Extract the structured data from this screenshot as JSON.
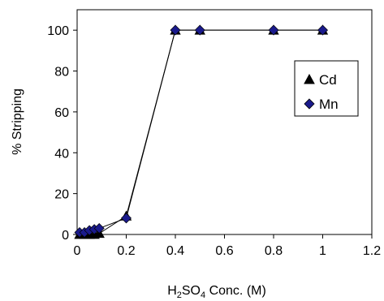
{
  "chart_data": {
    "type": "scatter",
    "xlabel": {
      "prefix": "H",
      "sub1": "2",
      "mid": "SO",
      "sub2": "4",
      "suffix": " Conc. (M)"
    },
    "ylabel": "% Stripping",
    "xlim": [
      0,
      1.2
    ],
    "ylim": [
      0,
      110
    ],
    "xticks": [
      0,
      0.2,
      0.4,
      0.6,
      0.8,
      1,
      1.2
    ],
    "xtick_labels": [
      "0",
      "0.2",
      "0.4",
      "0.6",
      "0.8",
      "1",
      "1.2"
    ],
    "yticks": [
      0,
      20,
      40,
      60,
      80,
      100
    ],
    "ytick_labels": [
      "0",
      "20",
      "40",
      "60",
      "80",
      "100"
    ],
    "grid": false,
    "legend_position": "right",
    "series": [
      {
        "name": "Cd",
        "marker": "triangle",
        "color": "#000000",
        "x": [
          0.01,
          0.03,
          0.05,
          0.07,
          0.09,
          0.2,
          0.4,
          0.5,
          0.8,
          1.0
        ],
        "y": [
          0,
          0,
          0,
          0,
          0.5,
          9,
          100,
          100,
          100,
          100
        ]
      },
      {
        "name": "Mn",
        "marker": "diamond",
        "color": "#1a1a8c",
        "x": [
          0.01,
          0.03,
          0.05,
          0.07,
          0.09,
          0.2,
          0.4,
          0.5,
          0.8,
          1.0
        ],
        "y": [
          1,
          1,
          2,
          2.5,
          3,
          8,
          100,
          100,
          100,
          100
        ]
      }
    ]
  }
}
